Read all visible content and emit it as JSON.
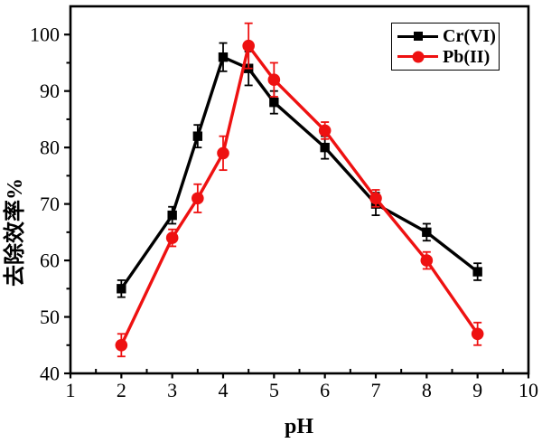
{
  "figure": {
    "background": "#ffffff",
    "axis_color": "#000000"
  },
  "chart_data": {
    "type": "line",
    "title": "",
    "xlabel": "pH",
    "ylabel": "去除效率%",
    "xlim": [
      1,
      10
    ],
    "ylim": [
      40,
      105
    ],
    "x_major_ticks": [
      1,
      2,
      3,
      4,
      5,
      6,
      7,
      8,
      9,
      10
    ],
    "x_minor_ticks": [
      1.5,
      2.5,
      3.5,
      4.5,
      5.5,
      6.5,
      7.5,
      8.5,
      9.5
    ],
    "y_major_ticks": [
      40,
      50,
      60,
      70,
      80,
      90,
      100
    ],
    "y_minor_ticks": [
      45,
      55,
      65,
      75,
      85,
      95
    ],
    "grid": false,
    "legend_position": "top-right",
    "series": [
      {
        "name": "Cr(VI)",
        "color": "#000000",
        "marker": "square",
        "x": [
          2,
          3,
          3.5,
          4,
          4.5,
          5,
          6,
          7,
          8,
          9
        ],
        "y": [
          55,
          68,
          82,
          96,
          94,
          88,
          80,
          70,
          65,
          58
        ],
        "err": [
          1.5,
          1.5,
          2,
          2.5,
          3,
          2,
          2,
          2,
          1.5,
          1.5
        ]
      },
      {
        "name": "Pb(II)",
        "color": "#ee1111",
        "marker": "circle",
        "x": [
          2,
          3,
          3.5,
          4,
          4.5,
          5,
          6,
          7,
          8,
          9
        ],
        "y": [
          45,
          64,
          71,
          79,
          98,
          92,
          83,
          71,
          60,
          47
        ],
        "err": [
          2,
          1.5,
          2.5,
          3,
          4,
          3,
          1.5,
          1.5,
          1.5,
          2
        ]
      }
    ]
  }
}
